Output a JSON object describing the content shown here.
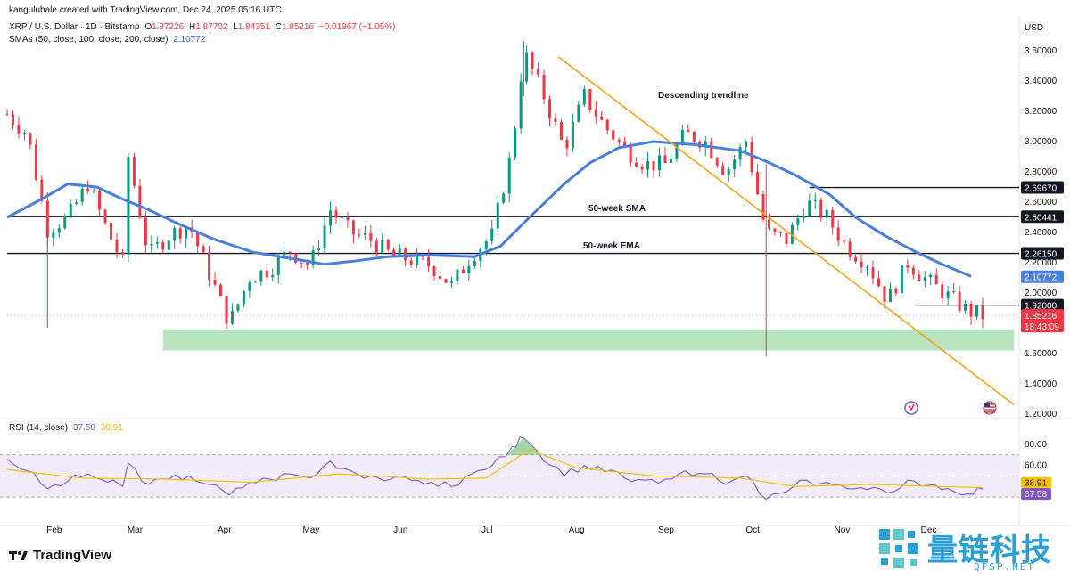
{
  "header": {
    "credit": "kangulubale created with TradingView.com, Dec 24, 2025 05:16 UTC",
    "symbol": "XRP / U.S. Dollar · 1D · Bitstamp",
    "ohlc": {
      "open_label": "O",
      "open": "1.87226",
      "high_label": "H",
      "high": "1.87702",
      "low_label": "L",
      "low": "1.84351",
      "close_label": "C",
      "close": "1.85216",
      "change": "−0.01967 (−1.05%)"
    },
    "sma_legend": "SMAs (50, close, 100, close, 200, close)",
    "sma_value": "2.10772",
    "rsi_legend": "RSI (14, close)",
    "rsi_value": "37.58",
    "rsi_ma_value": "38.91"
  },
  "footer": {
    "brand": "TradingView"
  },
  "watermark": {
    "text": "量链科技",
    "sub": "QFSP.NET"
  },
  "colors": {
    "up": "#089981",
    "down": "#f23645",
    "sma": "#4a7fd9",
    "trend": "#f5a31a",
    "support": "#a5dcae",
    "rsi": "#7e57c2",
    "rsi_ma": "#f0c000",
    "rsi_band": "#ede7f6"
  },
  "chart_data": {
    "type": "candlestick",
    "currency": "USD",
    "y_ticks": [
      "3.60000",
      "3.40000",
      "3.20000",
      "3.00000",
      "2.80000",
      "2.60000",
      "2.40000",
      "2.20000",
      "2.00000",
      "1.80000",
      "1.60000",
      "1.40000",
      "1.20000"
    ],
    "ylim": [
      1.2,
      3.7
    ],
    "x_ticks": [
      "Feb",
      "Mar",
      "Apr",
      "May",
      "Jun",
      "Jul",
      "Aug",
      "Sep",
      "Oct",
      "Nov",
      "Dec"
    ],
    "x_range": [
      "2025-01-20",
      "2025-12-24"
    ],
    "levels": [
      {
        "value": 2.6967,
        "label": "2.69670",
        "from": "2025-10-25"
      },
      {
        "value": 2.50441,
        "label": "2.50441",
        "from": "2025-01-20"
      },
      {
        "value": 2.2615,
        "label": "2.26150",
        "from": "2025-01-20"
      },
      {
        "value": 1.92,
        "label": "1.92000",
        "from": "2025-12-01"
      }
    ],
    "annotations": [
      {
        "text": "Descending trendline"
      },
      {
        "text": "50-week SMA"
      },
      {
        "text": "50-week EMA"
      }
    ],
    "price_badges": {
      "sma": "2.10772",
      "last": "1.85216",
      "countdown": "18:43:09",
      "rsi_ma": "38.91",
      "rsi": "37.58"
    },
    "support_zone": {
      "low": 1.62,
      "high": 1.76,
      "from": "2025-03-15",
      "to": "2025-12-24"
    },
    "trendline": {
      "start": [
        "2025-07-30",
        3.56
      ],
      "end": [
        "2025-12-24",
        1.38
      ]
    },
    "sma_points": [
      [
        "2025-01-20",
        2.5
      ],
      [
        "2025-02-01",
        2.62
      ],
      [
        "2025-02-10",
        2.72
      ],
      [
        "2025-02-20",
        2.7
      ],
      [
        "2025-03-01",
        2.62
      ],
      [
        "2025-03-10",
        2.55
      ],
      [
        "2025-03-20",
        2.46
      ],
      [
        "2025-04-01",
        2.36
      ],
      [
        "2025-04-15",
        2.27
      ],
      [
        "2025-05-01",
        2.22
      ],
      [
        "2025-05-10",
        2.19
      ],
      [
        "2025-05-20",
        2.21
      ],
      [
        "2025-06-01",
        2.24
      ],
      [
        "2025-06-15",
        2.25
      ],
      [
        "2025-07-01",
        2.24
      ],
      [
        "2025-07-10",
        2.31
      ],
      [
        "2025-07-20",
        2.5
      ],
      [
        "2025-08-01",
        2.72
      ],
      [
        "2025-08-10",
        2.86
      ],
      [
        "2025-08-20",
        2.96
      ],
      [
        "2025-09-01",
        3.0
      ],
      [
        "2025-09-15",
        2.98
      ],
      [
        "2025-10-01",
        2.94
      ],
      [
        "2025-10-10",
        2.87
      ],
      [
        "2025-10-20",
        2.78
      ],
      [
        "2025-11-01",
        2.65
      ],
      [
        "2025-11-10",
        2.5
      ],
      [
        "2025-11-20",
        2.38
      ],
      [
        "2025-12-01",
        2.27
      ],
      [
        "2025-12-10",
        2.19
      ],
      [
        "2025-12-20",
        2.11
      ]
    ],
    "price_path": [
      [
        "2025-01-20",
        3.18
      ],
      [
        "2025-01-27",
        3.05
      ],
      [
        "2025-02-03",
        2.42
      ],
      [
        "2025-02-10",
        2.5
      ],
      [
        "2025-02-17",
        2.72
      ],
      [
        "2025-02-24",
        2.4
      ],
      [
        "2025-03-01",
        2.2
      ],
      [
        "2025-03-03",
        2.9
      ],
      [
        "2025-03-10",
        2.25
      ],
      [
        "2025-03-17",
        2.38
      ],
      [
        "2025-03-24",
        2.45
      ],
      [
        "2025-03-31",
        2.13
      ],
      [
        "2025-04-07",
        1.8
      ],
      [
        "2025-04-14",
        2.1
      ],
      [
        "2025-04-21",
        2.16
      ],
      [
        "2025-04-28",
        2.28
      ],
      [
        "2025-05-05",
        2.18
      ],
      [
        "2025-05-12",
        2.55
      ],
      [
        "2025-05-19",
        2.4
      ],
      [
        "2025-05-26",
        2.35
      ],
      [
        "2025-06-02",
        2.25
      ],
      [
        "2025-06-09",
        2.22
      ],
      [
        "2025-06-16",
        2.18
      ],
      [
        "2025-06-23",
        2.05
      ],
      [
        "2025-06-30",
        2.25
      ],
      [
        "2025-07-07",
        2.38
      ],
      [
        "2025-07-14",
        2.95
      ],
      [
        "2025-07-18",
        3.6
      ],
      [
        "2025-07-25",
        3.3
      ],
      [
        "2025-08-01",
        2.95
      ],
      [
        "2025-08-08",
        3.3
      ],
      [
        "2025-08-15",
        3.1
      ],
      [
        "2025-08-22",
        2.95
      ],
      [
        "2025-08-29",
        2.85
      ],
      [
        "2025-09-05",
        2.85
      ],
      [
        "2025-09-12",
        3.05
      ],
      [
        "2025-09-19",
        3.0
      ],
      [
        "2025-09-26",
        2.8
      ],
      [
        "2025-10-03",
        3.0
      ],
      [
        "2025-10-10",
        2.4
      ],
      [
        "2025-10-17",
        2.35
      ],
      [
        "2025-10-24",
        2.6
      ],
      [
        "2025-10-31",
        2.5
      ],
      [
        "2025-11-07",
        2.3
      ],
      [
        "2025-11-14",
        2.2
      ],
      [
        "2025-11-21",
        1.95
      ],
      [
        "2025-11-28",
        2.2
      ],
      [
        "2025-12-05",
        2.08
      ],
      [
        "2025-12-12",
        1.98
      ],
      [
        "2025-12-19",
        1.88
      ],
      [
        "2025-12-24",
        1.85
      ]
    ],
    "rsi": {
      "ticks": [
        "80.00",
        "60.00",
        "40.00"
      ],
      "ylim": [
        20,
        90
      ],
      "band": [
        30,
        70
      ],
      "points": [
        [
          "2025-01-20",
          66
        ],
        [
          "2025-01-27",
          55
        ],
        [
          "2025-02-03",
          38
        ],
        [
          "2025-02-10",
          45
        ],
        [
          "2025-02-17",
          52
        ],
        [
          "2025-02-24",
          44
        ],
        [
          "2025-03-01",
          40
        ],
        [
          "2025-03-03",
          62
        ],
        [
          "2025-03-10",
          42
        ],
        [
          "2025-03-17",
          47
        ],
        [
          "2025-03-24",
          50
        ],
        [
          "2025-03-31",
          42
        ],
        [
          "2025-04-07",
          32
        ],
        [
          "2025-04-14",
          44
        ],
        [
          "2025-04-21",
          47
        ],
        [
          "2025-04-28",
          52
        ],
        [
          "2025-05-05",
          48
        ],
        [
          "2025-05-12",
          64
        ],
        [
          "2025-05-19",
          55
        ],
        [
          "2025-05-26",
          50
        ],
        [
          "2025-06-02",
          47
        ],
        [
          "2025-06-09",
          46
        ],
        [
          "2025-06-16",
          44
        ],
        [
          "2025-06-23",
          40
        ],
        [
          "2025-06-30",
          52
        ],
        [
          "2025-07-07",
          60
        ],
        [
          "2025-07-14",
          78
        ],
        [
          "2025-07-18",
          86
        ],
        [
          "2025-07-25",
          64
        ],
        [
          "2025-08-01",
          50
        ],
        [
          "2025-08-08",
          60
        ],
        [
          "2025-08-15",
          54
        ],
        [
          "2025-08-22",
          48
        ],
        [
          "2025-08-29",
          46
        ],
        [
          "2025-09-05",
          47
        ],
        [
          "2025-09-12",
          55
        ],
        [
          "2025-09-19",
          52
        ],
        [
          "2025-09-26",
          42
        ],
        [
          "2025-10-03",
          50
        ],
        [
          "2025-10-10",
          28
        ],
        [
          "2025-10-17",
          35
        ],
        [
          "2025-10-24",
          46
        ],
        [
          "2025-10-31",
          44
        ],
        [
          "2025-11-07",
          38
        ],
        [
          "2025-11-14",
          37
        ],
        [
          "2025-11-21",
          34
        ],
        [
          "2025-11-28",
          46
        ],
        [
          "2025-12-05",
          41
        ],
        [
          "2025-12-12",
          38
        ],
        [
          "2025-12-19",
          33
        ],
        [
          "2025-12-24",
          37.58
        ]
      ],
      "ma_points": [
        [
          "2025-01-20",
          56
        ],
        [
          "2025-02-15",
          48
        ],
        [
          "2025-03-15",
          47
        ],
        [
          "2025-04-15",
          44
        ],
        [
          "2025-05-15",
          52
        ],
        [
          "2025-06-15",
          47
        ],
        [
          "2025-07-05",
          48
        ],
        [
          "2025-07-20",
          75
        ],
        [
          "2025-08-05",
          58
        ],
        [
          "2025-09-01",
          50
        ],
        [
          "2025-10-01",
          48
        ],
        [
          "2025-10-20",
          40
        ],
        [
          "2025-11-15",
          42
        ],
        [
          "2025-12-10",
          40
        ],
        [
          "2025-12-24",
          38.91
        ]
      ]
    }
  }
}
